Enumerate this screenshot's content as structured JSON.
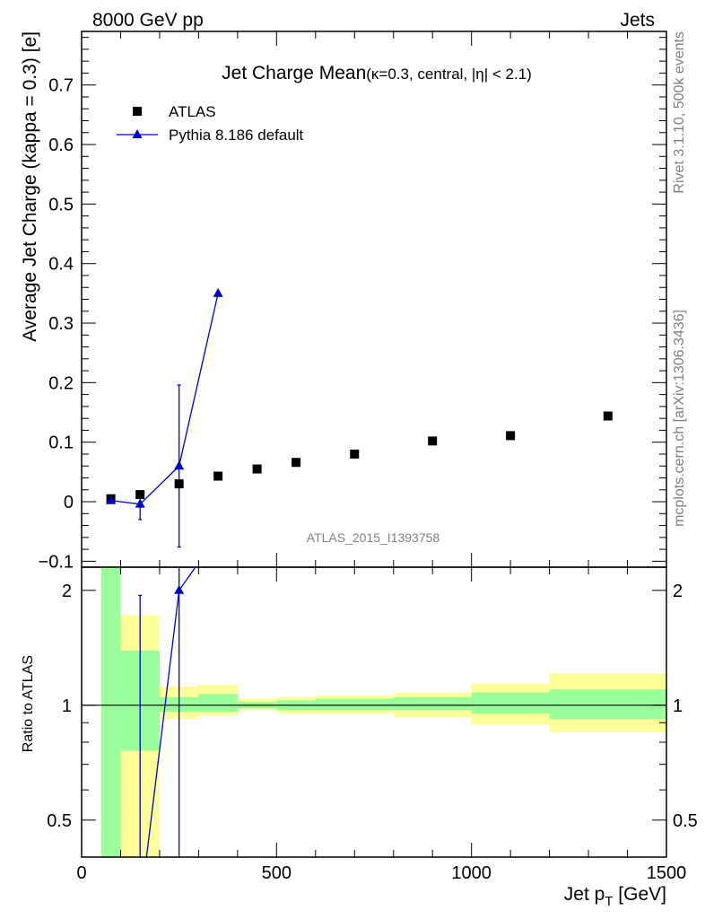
{
  "header": {
    "left": "8000 GeV pp",
    "right": "Jets"
  },
  "side_labels": {
    "rivet": "Rivet 3.1.10,  500k events",
    "mcplots": "mcplots.cern.ch [arXiv:1306.3436]"
  },
  "chart_data": [
    {
      "type": "scatter",
      "title": "Jet Charge Mean",
      "title_suffix": "(κ=0.3, central, |η| < 2.1)",
      "xlabel": "",
      "ylabel": "Average Jet Charge (kappa = 0.3) [e]",
      "xlim": [
        0,
        1500
      ],
      "ylim": [
        -0.11,
        0.79
      ],
      "yticks": [
        -0.1,
        0,
        0.1,
        0.2,
        0.3,
        0.4,
        0.5,
        0.6,
        0.7
      ],
      "ytick_labels": [
        "−0.1",
        "0",
        "0.1",
        "0.2",
        "0.3",
        "0.4",
        "0.5",
        "0.6",
        "0.7"
      ],
      "watermark": "ATLAS_2015_I1393758",
      "legend_position": "top-left",
      "series": [
        {
          "name": "ATLAS",
          "marker": "square",
          "color": "#000000",
          "x": [
            75,
            150,
            250,
            350,
            450,
            550,
            700,
            900,
            1100,
            1350
          ],
          "y": [
            0.005,
            0.012,
            0.03,
            0.043,
            0.055,
            0.066,
            0.08,
            0.102,
            0.111,
            0.144
          ]
        },
        {
          "name": "Pythia 8.186 default",
          "marker": "triangle",
          "line": true,
          "color": "#0000cc",
          "x": [
            75,
            150,
            250,
            350
          ],
          "y": [
            0.002,
            -0.004,
            0.06,
            0.35
          ],
          "yerr_low": [
            0.002,
            0.026,
            0.136,
            0.0
          ],
          "yerr_high": [
            0.002,
            0.018,
            0.136,
            0.0
          ]
        }
      ]
    },
    {
      "type": "area",
      "xlabel": "Jet p_T [GeV]",
      "xlabel_main": "Jet p",
      "xlabel_sub": "T",
      "xlabel_unit": " [GeV]",
      "ylabel": "Ratio to ATLAS",
      "xlim": [
        0,
        1500
      ],
      "ylim": [
        0.4,
        2.3
      ],
      "log_y": true,
      "yticks": [
        0.5,
        1,
        2
      ],
      "ytick_labels": [
        "0.5",
        "1",
        "2"
      ],
      "xticks": [
        0,
        500,
        1000,
        1500
      ],
      "xtick_labels": [
        "0",
        "500",
        "1000",
        "1500"
      ],
      "bands": {
        "edges": [
          50,
          100,
          200,
          300,
          400,
          500,
          600,
          800,
          1000,
          1200,
          1500
        ],
        "green_low": [
          0.3,
          0.76,
          0.96,
          0.96,
          0.98,
          0.97,
          0.97,
          0.97,
          0.95,
          0.92
        ],
        "green_high": [
          2.5,
          1.39,
          1.05,
          1.07,
          1.02,
          1.03,
          1.04,
          1.05,
          1.08,
          1.1
        ],
        "yellow_low": [
          0.3,
          0.38,
          0.92,
          0.94,
          0.97,
          0.95,
          0.95,
          0.93,
          0.89,
          0.85
        ],
        "yellow_high": [
          2.5,
          1.72,
          1.12,
          1.13,
          1.04,
          1.05,
          1.06,
          1.08,
          1.14,
          1.21
        ]
      },
      "pythia_ratio": {
        "x": [
          75,
          150,
          250,
          350
        ],
        "y": [
          0.4,
          -0.33,
          2.0,
          8.1
        ],
        "err_point_x": 150,
        "err_high": 1.94,
        "err_point2_x": 250
      }
    }
  ]
}
